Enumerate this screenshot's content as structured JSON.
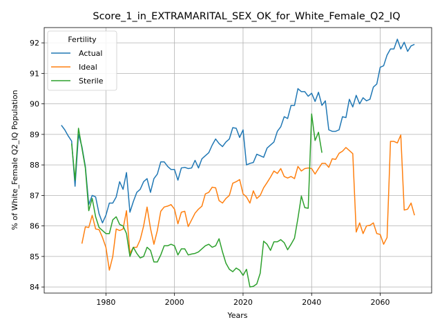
{
  "chart_data": {
    "type": "line",
    "title": "Score_1_in_EXTRAMARITAL_SEX_OK_for_White_Female_Q2_IQ",
    "xlabel": "Years",
    "ylabel": "% of White_Female Q2_IQ Population",
    "xlim": [
      1962,
      2075
    ],
    "ylim": [
      83.8,
      92.5
    ],
    "xticks": [
      1980,
      2000,
      2020,
      2040,
      2060
    ],
    "yticks": [
      84,
      85,
      86,
      87,
      88,
      89,
      90,
      91,
      92
    ],
    "grid": true,
    "legend": {
      "title": "Fertility",
      "placement": "top-left"
    },
    "series": [
      {
        "name": "Actual",
        "color": "#1f77b4",
        "x": [
          1967,
          1968,
          1969,
          1970,
          1971,
          1972,
          1973,
          1974,
          1975,
          1976,
          1977,
          1978,
          1979,
          1980,
          1981,
          1982,
          1983,
          1984,
          1985,
          1986,
          1987,
          1988,
          1989,
          1990,
          1991,
          1992,
          1993,
          1994,
          1995,
          1996,
          1997,
          1998,
          1999,
          2000,
          2001,
          2002,
          2003,
          2004,
          2005,
          2006,
          2007,
          2008,
          2009,
          2010,
          2011,
          2012,
          2013,
          2014,
          2015,
          2016,
          2017,
          2018,
          2019,
          2020,
          2021,
          2022,
          2023,
          2024,
          2025,
          2026,
          2027,
          2028,
          2029,
          2030,
          2031,
          2032,
          2033,
          2034,
          2035,
          2036,
          2037,
          2038,
          2039,
          2040,
          2041,
          2042,
          2043,
          2044,
          2045,
          2046,
          2047,
          2048,
          2049,
          2050,
          2051,
          2052,
          2053,
          2054,
          2055,
          2056,
          2057,
          2058,
          2059,
          2060,
          2061,
          2062,
          2063,
          2064,
          2065,
          2066,
          2067,
          2068,
          2069,
          2070
        ],
        "values": [
          89.3,
          89.15,
          88.95,
          88.78,
          87.3,
          89.0,
          88.6,
          87.95,
          86.7,
          87.0,
          86.95,
          86.4,
          86.1,
          86.35,
          86.75,
          86.75,
          86.95,
          87.45,
          87.2,
          87.75,
          86.45,
          86.8,
          87.1,
          87.2,
          87.45,
          87.55,
          87.1,
          87.55,
          87.7,
          88.1,
          88.1,
          87.95,
          87.85,
          87.85,
          87.5,
          87.9,
          87.92,
          87.88,
          87.9,
          88.15,
          87.9,
          88.2,
          88.3,
          88.4,
          88.65,
          88.85,
          88.7,
          88.6,
          88.75,
          88.85,
          89.22,
          89.2,
          88.9,
          89.15,
          88.0,
          88.05,
          88.08,
          88.35,
          88.3,
          88.25,
          88.55,
          88.65,
          88.75,
          89.1,
          89.25,
          89.58,
          89.52,
          89.95,
          89.95,
          90.5,
          90.4,
          90.4,
          90.25,
          90.35,
          90.08,
          90.38,
          89.95,
          90.1,
          89.15,
          89.1,
          89.1,
          89.15,
          89.58,
          89.55,
          90.15,
          89.9,
          90.28,
          90.0,
          90.2,
          90.1,
          90.15,
          90.55,
          90.65,
          91.2,
          91.25,
          91.6,
          91.8,
          91.8,
          92.12,
          91.8,
          92.02,
          91.72,
          91.9,
          91.95
        ]
      },
      {
        "name": "Ideal",
        "color": "#ff7f0e",
        "x": [
          1973,
          1974,
          1975,
          1976,
          1977,
          1978,
          1979,
          1980,
          1981,
          1982,
          1983,
          1984,
          1985,
          1986,
          1987,
          1988,
          1989,
          1990,
          1991,
          1992,
          1993,
          1994,
          1995,
          1996,
          1997,
          1998,
          1999,
          2000,
          2001,
          2002,
          2003,
          2004,
          2005,
          2006,
          2007,
          2008,
          2009,
          2010,
          2011,
          2012,
          2013,
          2014,
          2015,
          2016,
          2017,
          2018,
          2019,
          2020,
          2021,
          2022,
          2023,
          2024,
          2025,
          2026,
          2027,
          2028,
          2029,
          2030,
          2031,
          2032,
          2033,
          2034,
          2035,
          2036,
          2037,
          2038,
          2039,
          2040,
          2041,
          2042,
          2043,
          2044,
          2045,
          2046,
          2047,
          2048,
          2049,
          2050,
          2051,
          2052,
          2053,
          2054,
          2055,
          2056,
          2057,
          2058,
          2059,
          2060,
          2061,
          2062,
          2063,
          2064,
          2065,
          2066,
          2067,
          2068,
          2069,
          2070
        ],
        "values": [
          85.42,
          85.97,
          85.95,
          86.35,
          85.9,
          85.88,
          85.62,
          85.3,
          84.55,
          85.0,
          85.9,
          85.85,
          85.9,
          86.5,
          85.1,
          85.3,
          85.3,
          85.55,
          86.0,
          86.62,
          85.92,
          85.4,
          85.85,
          86.48,
          86.62,
          86.65,
          86.7,
          86.55,
          86.07,
          86.45,
          86.48,
          85.98,
          86.2,
          86.42,
          86.55,
          86.65,
          87.05,
          87.1,
          87.27,
          87.25,
          86.83,
          86.75,
          86.9,
          87.0,
          87.4,
          87.45,
          87.52,
          87.05,
          86.95,
          86.75,
          87.15,
          86.9,
          87.0,
          87.25,
          87.42,
          87.6,
          87.8,
          87.72,
          87.88,
          87.62,
          87.57,
          87.62,
          87.55,
          87.95,
          87.8,
          87.88,
          87.9,
          87.88,
          87.7,
          87.88,
          88.05,
          88.05,
          87.92,
          88.2,
          88.18,
          88.38,
          88.45,
          88.57,
          88.47,
          88.37,
          85.8,
          86.1,
          85.75,
          86.0,
          86.02,
          86.1,
          85.75,
          85.72,
          85.4,
          85.62,
          88.77,
          88.77,
          88.72,
          88.98,
          86.52,
          86.55,
          86.75,
          86.35
        ]
      },
      {
        "name": "Sterile",
        "color": "#2ca02c",
        "x": [
          1970,
          1971,
          1972,
          1973,
          1974,
          1975,
          1976,
          1977,
          1978,
          1979,
          1980,
          1981,
          1982,
          1983,
          1984,
          1985,
          1986,
          1987,
          1988,
          1989,
          1990,
          1991,
          1992,
          1993,
          1994,
          1995,
          1996,
          1997,
          1998,
          1999,
          2000,
          2001,
          2002,
          2003,
          2004,
          2005,
          2006,
          2007,
          2008,
          2009,
          2010,
          2011,
          2012,
          2013,
          2014,
          2015,
          2016,
          2017,
          2018,
          2019,
          2020,
          2021,
          2022,
          2023,
          2024,
          2025,
          2026,
          2027,
          2028,
          2029,
          2030,
          2031,
          2032,
          2033,
          2034,
          2035,
          2036,
          2037,
          2038,
          2039,
          2040,
          2041,
          2042,
          2043
        ],
        "values": [
          88.7,
          87.5,
          89.2,
          88.55,
          87.9,
          86.5,
          86.9,
          86.3,
          85.95,
          85.85,
          85.75,
          85.75,
          86.2,
          86.3,
          86.05,
          86.0,
          85.75,
          85.0,
          85.3,
          85.1,
          84.95,
          85.0,
          85.3,
          85.2,
          84.82,
          84.82,
          85.05,
          85.35,
          85.35,
          85.4,
          85.35,
          85.05,
          85.25,
          85.25,
          85.05,
          85.08,
          85.1,
          85.15,
          85.25,
          85.35,
          85.4,
          85.3,
          85.35,
          85.58,
          85.15,
          84.78,
          84.58,
          84.5,
          84.62,
          84.55,
          84.38,
          84.58,
          84.0,
          84.02,
          84.1,
          84.45,
          85.5,
          85.4,
          85.2,
          85.48,
          85.48,
          85.55,
          85.45,
          85.22,
          85.4,
          85.6,
          86.25,
          86.98,
          86.6,
          86.58,
          89.67,
          88.8,
          89.07,
          88.4
        ]
      }
    ]
  }
}
